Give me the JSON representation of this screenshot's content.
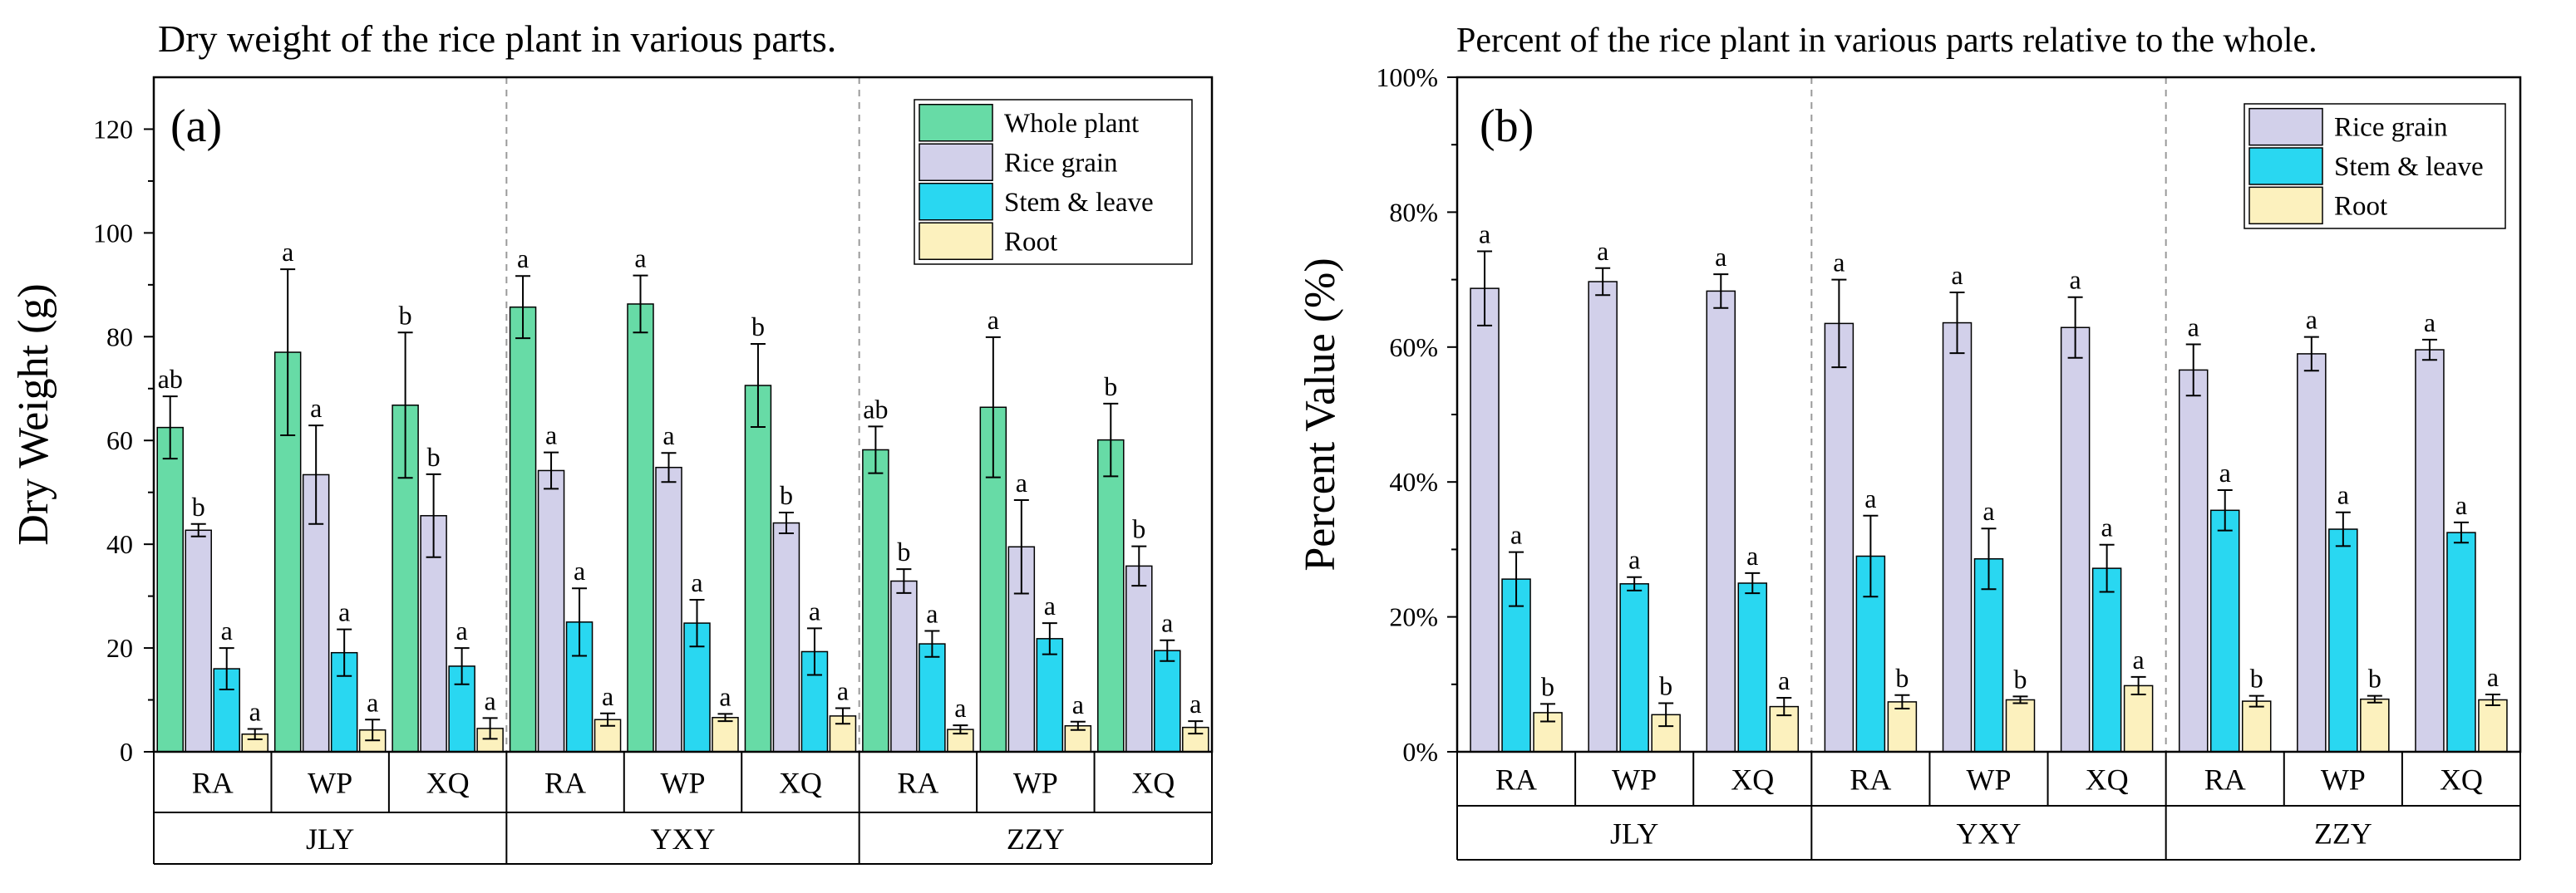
{
  "colors": {
    "whole_plant": "#67DBA6",
    "rice_grain": "#D2D0EA",
    "stem_leave": "#29D7F1",
    "root": "#FCF1BE"
  },
  "chart_data": [
    {
      "type": "bar",
      "title": "Dry weight of the rice plant in various parts.",
      "panel_label": "(a)",
      "ylabel": "Dry Weight (g)",
      "ylim": [
        0,
        130
      ],
      "yticks": [
        "0",
        "20",
        "40",
        "60",
        "80",
        "100",
        "120"
      ],
      "legend_position": "top-right",
      "groups": [
        "JLY",
        "YXY",
        "ZZY"
      ],
      "categories": [
        "RA",
        "WP",
        "XQ",
        "RA",
        "WP",
        "XQ",
        "RA",
        "WP",
        "XQ"
      ],
      "series": [
        {
          "name": "Whole plant",
          "color_key": "whole_plant",
          "values": [
            62.5,
            77,
            66.8,
            85.7,
            86.3,
            70.6,
            58.2,
            66.4,
            60.1
          ],
          "errors": [
            6,
            16,
            14,
            6,
            5.5,
            8,
            4.5,
            13.5,
            7
          ],
          "letters": [
            "ab",
            "a",
            "b",
            "a",
            "a",
            "b",
            "ab",
            "a",
            "b"
          ]
        },
        {
          "name": "Rice grain",
          "color_key": "rice_grain",
          "values": [
            42.7,
            53.4,
            45.5,
            54.2,
            54.8,
            44.1,
            32.9,
            39.5,
            35.8
          ],
          "errors": [
            1.2,
            9.5,
            8,
            3.5,
            2.8,
            2,
            2.3,
            9,
            3.8
          ],
          "letters": [
            "b",
            "a",
            "b",
            "a",
            "a",
            "b",
            "b",
            "a",
            "b"
          ]
        },
        {
          "name": "Stem & leave",
          "color_key": "stem_leave",
          "values": [
            16,
            19.1,
            16.5,
            25,
            24.8,
            19.3,
            20.8,
            21.8,
            19.5
          ],
          "errors": [
            4,
            4.5,
            3.5,
            6.5,
            4.5,
            4.5,
            2.5,
            3,
            2
          ],
          "letters": [
            "a",
            "a",
            "a",
            "a",
            "a",
            "a",
            "a",
            "a",
            "a"
          ]
        },
        {
          "name": "Root",
          "color_key": "root",
          "values": [
            3.4,
            4.2,
            4.5,
            6.2,
            6.6,
            6.9,
            4.3,
            5,
            4.7
          ],
          "errors": [
            1,
            2,
            2,
            1.2,
            0.7,
            1.5,
            0.8,
            0.8,
            1.2
          ],
          "letters": [
            "a",
            "a",
            "a",
            "a",
            "a",
            "a",
            "a",
            "a",
            "a"
          ]
        }
      ]
    },
    {
      "type": "bar",
      "title": "Percent of the rice plant in various parts relative to the whole.",
      "panel_label": "(b)",
      "ylabel": "Percent Value (%)",
      "ylim": [
        0,
        100
      ],
      "yticks": [
        "0%",
        "20%",
        "40%",
        "60%",
        "80%",
        "100%"
      ],
      "legend_position": "top-right",
      "groups": [
        "JLY",
        "YXY",
        "ZZY"
      ],
      "categories": [
        "RA",
        "WP",
        "XQ",
        "RA",
        "WP",
        "XQ",
        "RA",
        "WP",
        "XQ"
      ],
      "series": [
        {
          "name": "Rice grain",
          "color_key": "rice_grain",
          "values": [
            68.7,
            69.7,
            68.3,
            63.5,
            63.6,
            62.9,
            56.6,
            59,
            59.6
          ],
          "errors": [
            5.5,
            2,
            2.5,
            6.5,
            4.5,
            4.5,
            3.8,
            2.5,
            1.5
          ],
          "letters": [
            "a",
            "a",
            "a",
            "a",
            "a",
            "a",
            "a",
            "a",
            "a"
          ]
        },
        {
          "name": "Stem & leave",
          "color_key": "stem_leave",
          "values": [
            25.6,
            24.9,
            25,
            29,
            28.6,
            27.2,
            35.8,
            33,
            32.5
          ],
          "errors": [
            4,
            1,
            1.5,
            6,
            4.5,
            3.5,
            3,
            2.5,
            1.5
          ],
          "letters": [
            "a",
            "a",
            "a",
            "a",
            "a",
            "a",
            "a",
            "a",
            "a"
          ]
        },
        {
          "name": "Root",
          "color_key": "root",
          "values": [
            5.8,
            5.5,
            6.7,
            7.4,
            7.7,
            9.8,
            7.5,
            7.8,
            7.7
          ],
          "errors": [
            1.3,
            1.7,
            1.3,
            1,
            0.5,
            1.3,
            0.8,
            0.5,
            0.8
          ],
          "letters": [
            "b",
            "b",
            "a",
            "b",
            "b",
            "a",
            "b",
            "b",
            "a"
          ]
        }
      ]
    }
  ]
}
